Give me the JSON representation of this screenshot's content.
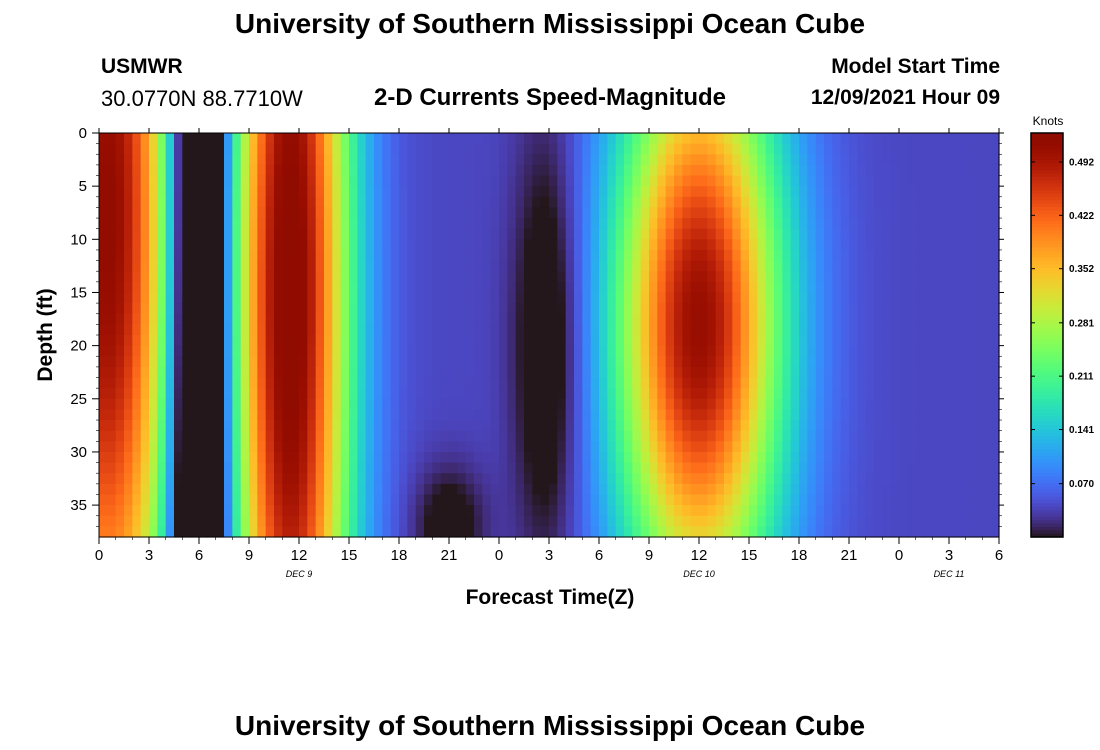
{
  "page": {
    "title": "University of Southern Mississippi Ocean Cube",
    "title_repeat": "University of Southern Mississippi Ocean Cube",
    "station_id": "USMWR",
    "coordinates": "30.0770N  88.7710W",
    "subtitle": "2-D Currents Speed-Magnitude",
    "model_start_label": "Model Start Time",
    "model_start_value": "12/09/2021 Hour 09"
  },
  "chart_data": {
    "type": "heatmap",
    "title": "2-D Currents Speed-Magnitude",
    "xlabel": "Forecast Time(Z)",
    "ylabel": "Depth (ft)",
    "x_tick_labels": [
      "0",
      "3",
      "6",
      "9",
      "12",
      "15",
      "18",
      "21",
      "0",
      "3",
      "6",
      "9",
      "12",
      "15",
      "18",
      "21",
      "0",
      "3",
      "6"
    ],
    "x_hours": [
      0,
      3,
      6,
      9,
      12,
      15,
      18,
      21,
      24,
      27,
      30,
      33,
      36,
      39,
      42,
      45,
      48,
      51,
      54
    ],
    "xlim_hours": [
      0,
      54
    ],
    "day_labels": [
      {
        "label": "DEC 9",
        "hour": 12
      },
      {
        "label": "DEC 10",
        "hour": 36
      },
      {
        "label": "DEC 11",
        "hour": 51
      }
    ],
    "y_tick_labels": [
      "0",
      "5",
      "10",
      "15",
      "20",
      "25",
      "30",
      "35"
    ],
    "y_ticks": [
      0,
      5,
      10,
      15,
      20,
      25,
      30,
      35
    ],
    "ylim": [
      0,
      38
    ],
    "y_inverted": true,
    "colorbar": {
      "unit": "Knots",
      "min": 0.0,
      "max": 0.53,
      "tick_values": [
        0.492,
        0.422,
        0.352,
        0.281,
        0.211,
        0.141,
        0.07
      ],
      "tick_labels": [
        "0.492",
        "0.422",
        "0.352",
        "0.281",
        "0.211",
        "0.141",
        "0.070"
      ],
      "colormap": "turbo"
    },
    "field": {
      "units": "knots",
      "baseline": 0.04,
      "features": [
        {
          "kind": "high",
          "t_center": 0.5,
          "t_width": 3.0,
          "depth_center": 8,
          "depth_width": 40,
          "amplitude": 0.48
        },
        {
          "kind": "low",
          "t_center": 6.0,
          "t_width": 1.2,
          "depth_center": 18,
          "depth_width": 60,
          "amplitude": -0.35
        },
        {
          "kind": "high",
          "t_center": 11.5,
          "t_width": 2.5,
          "depth_center": 15,
          "depth_width": 45,
          "amplitude": 0.5
        },
        {
          "kind": "low",
          "t_center": 27.0,
          "t_width": 1.5,
          "depth_center": 20,
          "depth_width": 15,
          "amplitude": -0.08
        },
        {
          "kind": "high",
          "t_center": 36.0,
          "t_width": 3.5,
          "depth_center": 18,
          "depth_width": 20,
          "amplitude": 0.47
        },
        {
          "kind": "bottom-low",
          "t_center": 21.0,
          "t_width": 1.5,
          "depth_center": 37,
          "depth_width": 4,
          "amplitude": -0.06
        }
      ]
    }
  }
}
